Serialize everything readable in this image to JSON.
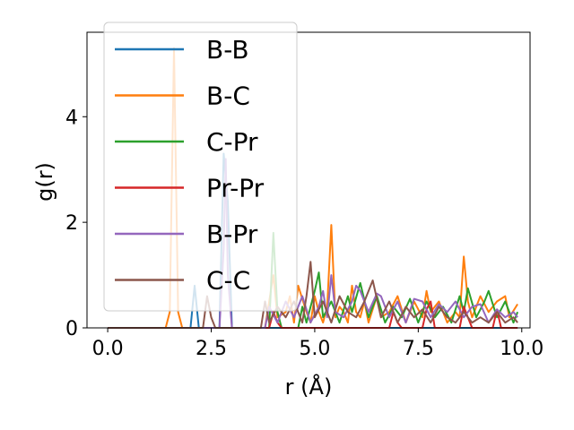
{
  "chart_data": {
    "type": "line",
    "xlabel": "r (Å)",
    "ylabel": "g(r)",
    "xlim": [
      -0.5,
      10.2
    ],
    "ylim": [
      0,
      5.6
    ],
    "xticks": [
      0.0,
      2.5,
      5.0,
      7.5,
      10.0
    ],
    "xtick_labels": [
      "0.0",
      "2.5",
      "5.0",
      "7.5",
      "10.0"
    ],
    "yticks": [
      0,
      2,
      4
    ],
    "ytick_labels": [
      "0",
      "2",
      "4"
    ],
    "legend_position": "top-left",
    "grid": false,
    "series": [
      {
        "name": "B-B",
        "color": "#1f77b4",
        "x": [
          0,
          1.9,
          2.0,
          2.1,
          2.2,
          2.7,
          2.8,
          2.9,
          3.0,
          3.1,
          9.9
        ],
        "y": [
          0,
          0,
          0,
          0.8,
          0,
          0,
          3.3,
          2.4,
          0,
          0,
          0
        ]
      },
      {
        "name": "B-C",
        "color": "#ff7f0e",
        "x": [
          0,
          1.4,
          1.5,
          1.6,
          1.7,
          1.8,
          3.8,
          3.9,
          4.0,
          4.1,
          4.3,
          4.4,
          4.5,
          4.6,
          4.8,
          4.9,
          5.0,
          5.1,
          5.2,
          5.3,
          5.4,
          5.5,
          5.6,
          5.7,
          5.8,
          5.9,
          6.0,
          6.1,
          6.2,
          6.3,
          6.5,
          6.6,
          6.8,
          7.0,
          7.2,
          7.4,
          7.6,
          7.7,
          7.8,
          8.0,
          8.2,
          8.4,
          8.5,
          8.6,
          8.7,
          8.8,
          9.0,
          9.2,
          9.4,
          9.6,
          9.7,
          9.9
        ],
        "y": [
          0,
          0,
          0.3,
          5.3,
          0.3,
          0,
          0,
          0.5,
          1.0,
          0.2,
          0.3,
          0.6,
          0.1,
          0.8,
          0.3,
          0.1,
          0.6,
          0.3,
          0.1,
          0.4,
          1.95,
          0.2,
          0.4,
          0.3,
          0.1,
          0.8,
          0.3,
          0.2,
          0.5,
          0.1,
          0.6,
          0.2,
          0.3,
          0.6,
          0.1,
          0.5,
          0.2,
          0.7,
          0.3,
          0.5,
          0.1,
          0.3,
          0.2,
          1.35,
          0.5,
          0.2,
          0.6,
          0.3,
          0.5,
          0.6,
          0.2,
          0.45
        ]
      },
      {
        "name": "C-Pr",
        "color": "#2ca02c",
        "x": [
          0,
          3.9,
          4.0,
          4.1,
          4.2,
          4.6,
          4.7,
          4.8,
          5.0,
          5.1,
          5.2,
          5.4,
          5.6,
          5.8,
          5.9,
          6.1,
          6.3,
          6.5,
          6.7,
          6.9,
          7.1,
          7.3,
          7.5,
          7.7,
          7.9,
          8.1,
          8.3,
          8.5,
          8.6,
          8.7,
          8.9,
          9.1,
          9.2,
          9.4,
          9.6,
          9.8,
          9.9
        ],
        "y": [
          0,
          0,
          1.8,
          0.3,
          0,
          0,
          0.4,
          0.1,
          0.7,
          1.05,
          0.2,
          0.5,
          0.1,
          0.6,
          0.3,
          0.85,
          0.2,
          0.6,
          0.1,
          0.4,
          0.2,
          0.55,
          0.1,
          0.5,
          0.2,
          0.4,
          0.1,
          0.6,
          0.3,
          0.75,
          0.2,
          0.5,
          0.7,
          0.2,
          0.5,
          0.1,
          0.3
        ]
      },
      {
        "name": "Pr-Pr",
        "color": "#d62728",
        "x": [
          0,
          3.9,
          4.0,
          4.1,
          4.2,
          6.8,
          6.9,
          7.0,
          7.1,
          7.6,
          7.7,
          7.8,
          7.9,
          8.5,
          8.6,
          8.7,
          8.8,
          9.3,
          9.4,
          9.5,
          9.9
        ],
        "y": [
          0,
          0,
          0.3,
          0.1,
          0,
          0,
          0.3,
          0.1,
          0,
          0,
          0.35,
          0.5,
          0,
          0,
          0.4,
          0.2,
          0,
          0,
          0.35,
          0,
          0
        ]
      },
      {
        "name": "B-Pr",
        "color": "#9467bd",
        "x": [
          0,
          2.7,
          2.8,
          2.85,
          2.9,
          3.0,
          3.8,
          3.9,
          4.1,
          4.3,
          4.5,
          4.7,
          4.9,
          5.1,
          5.2,
          5.3,
          5.4,
          5.5,
          5.7,
          5.9,
          6.0,
          6.1,
          6.3,
          6.5,
          6.6,
          6.8,
          7.0,
          7.2,
          7.4,
          7.6,
          7.8,
          8.0,
          8.2,
          8.4,
          8.6,
          8.8,
          9.0,
          9.2,
          9.4,
          9.6,
          9.8,
          9.9
        ],
        "y": [
          0,
          0,
          1.5,
          3.2,
          1.0,
          0,
          0,
          0.4,
          0.1,
          0.5,
          0.2,
          0.6,
          0.1,
          0.4,
          0.7,
          0.2,
          1.0,
          0.3,
          0.2,
          0.5,
          0.8,
          0.7,
          0.3,
          0.65,
          0.6,
          0.2,
          0.5,
          0.1,
          0.55,
          0.5,
          0.2,
          0.45,
          0.3,
          0.5,
          0.2,
          0.4,
          0.45,
          0.1,
          0.35,
          0.2,
          0.3,
          0.2
        ]
      },
      {
        "name": "C-C",
        "color": "#8c564b",
        "x": [
          0,
          2.3,
          2.4,
          2.5,
          2.6,
          3.7,
          3.8,
          3.9,
          4.1,
          4.3,
          4.5,
          4.7,
          4.8,
          4.9,
          5.0,
          5.2,
          5.4,
          5.6,
          5.8,
          6.0,
          6.2,
          6.4,
          6.6,
          6.8,
          7.0,
          7.2,
          7.4,
          7.6,
          7.8,
          8.0,
          8.2,
          8.4,
          8.6,
          8.8,
          9.0,
          9.2,
          9.4,
          9.6,
          9.8,
          9.9
        ],
        "y": [
          0,
          0,
          0.6,
          0.2,
          0,
          0,
          0.5,
          0.1,
          0.4,
          0.2,
          0.5,
          0.1,
          0.6,
          1.25,
          0.2,
          0.5,
          0.1,
          0.6,
          0.3,
          0.2,
          0.5,
          0.9,
          0.2,
          0.5,
          0.1,
          0.4,
          0.2,
          0.35,
          0.1,
          0.4,
          0.2,
          0.1,
          0.3,
          0.1,
          0.2,
          0.1,
          0.3,
          0.1,
          0.2,
          0.1
        ]
      }
    ]
  }
}
